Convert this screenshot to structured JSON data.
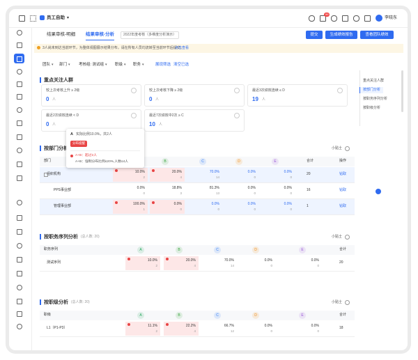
{
  "topbar": {
    "app": "员工自助",
    "badge": "99",
    "user": "李晓东"
  },
  "tabs": [
    "结果审核-明细",
    "结果审核-分析"
  ],
  "cycle": "2022年度考核（多维度分析演示）",
  "buttons": [
    "提交",
    "生成绩效报告",
    "查看团队绩效"
  ],
  "notice": {
    "text": "3人尚未到达当前环节，为整体视图展示结果分布，请在所有人员均流转至当前环节后提交。",
    "link": "点击查看"
  },
  "filters": [
    "团队",
    "部门",
    "考核组: 测试组",
    "职级",
    "职务"
  ],
  "filter_links": [
    "展现筛选",
    "清空已选"
  ],
  "focus": {
    "title": "重点关注人群",
    "cards": [
      {
        "label": "较上次考核上升 ≥ 2级",
        "value": "0",
        "unit": "人"
      },
      {
        "label": "较上次考核下降 ≥ 2级",
        "value": "0",
        "unit": "人"
      },
      {
        "label": "最近3次绩效连续 ≤ D",
        "value": "19",
        "unit": "人"
      },
      {
        "label": "最近2次绩效连续 < D",
        "value": "0",
        "unit": "人"
      },
      {
        "label": "最近7次绩效中2次 ≥ C",
        "value": "10",
        "unit": "人"
      }
    ]
  },
  "tooltip": {
    "grade": "A",
    "summary": "实际比例10.0%，共2人",
    "tag": "分布提醒",
    "warn": "A+B：超过2人",
    "rule": "A+B：强制分布比例≤20%,人数≤4人"
  },
  "nav": [
    "重点关注人群",
    "按部门分析",
    "按职务序列分析",
    "按职级分析"
  ],
  "grade_colors": {
    "A": "#27a85f",
    "B": "#3aa640",
    "C": "#2f7bf6",
    "D": "#f08c1a",
    "E": "#9a5ad8"
  },
  "tables": [
    {
      "title": "按部门分析",
      "tip": "小贴士",
      "columns": [
        "部门",
        "A",
        "B",
        "C",
        "D",
        "E",
        "合计",
        "操作"
      ],
      "rows": [
        {
          "name": "组织机构",
          "tone": "blue",
          "cells": [
            {
              "pct": "10.0%",
              "count": "2",
              "tone": "red"
            },
            {
              "pct": "20.0%",
              "count": "4",
              "tone": "red"
            },
            {
              "pct": "70.0%",
              "count": "14"
            },
            {
              "pct": "0.0%",
              "count": "0"
            },
            {
              "pct": "0.0%",
              "count": "0"
            }
          ],
          "total": "20",
          "action": "钻取"
        },
        {
          "name": "PPS事业部",
          "cells": [
            {
              "pct": "0.0%",
              "count": "0"
            },
            {
              "pct": "18.8%",
              "count": "3"
            },
            {
              "pct": "81.3%",
              "count": "13"
            },
            {
              "pct": "0.0%",
              "count": "0"
            },
            {
              "pct": "0.0%",
              "count": "0"
            }
          ],
          "total": "16",
          "action": "钻取"
        },
        {
          "name": "管理事业部",
          "tone": "blue",
          "cells": [
            {
              "pct": "100.0%",
              "count": "1",
              "tone": "red"
            },
            {
              "pct": "0.0%",
              "count": "0",
              "tone": "red"
            },
            {
              "pct": "0.0%",
              "count": "0"
            },
            {
              "pct": "0.0%",
              "count": "0"
            },
            {
              "pct": "0.0%",
              "count": "0"
            }
          ],
          "total": "1",
          "action": "钻取"
        }
      ]
    },
    {
      "title": "按职务序列分析",
      "note": "(总人数: 20)",
      "tip": "小贴士",
      "columns": [
        "职务序列",
        "A",
        "B",
        "C",
        "D",
        "E",
        "合计"
      ],
      "rows": [
        {
          "name": "测试序列",
          "cells": [
            {
              "pct": "10.0%",
              "count": "2",
              "tone": "red"
            },
            {
              "pct": "20.0%",
              "count": "4",
              "tone": "red"
            },
            {
              "pct": "70.0%",
              "count": "14"
            },
            {
              "pct": "0.0%",
              "count": "0"
            },
            {
              "pct": "0.0%",
              "count": "0"
            }
          ],
          "total": "20"
        }
      ]
    },
    {
      "title": "按职级分析",
      "note": "(总人数: 20)",
      "tip": "小贴士",
      "columns": [
        "职级",
        "A",
        "B",
        "C",
        "D",
        "E",
        "合计"
      ],
      "rows": [
        {
          "name": "L1（P1-P3）",
          "cells": [
            {
              "pct": "11.1%",
              "count": "2",
              "tone": "red"
            },
            {
              "pct": "22.2%",
              "count": "4",
              "tone": "red"
            },
            {
              "pct": "66.7%",
              "count": "12"
            },
            {
              "pct": "0.0%",
              "count": "0"
            },
            {
              "pct": "0.0%",
              "count": "0"
            }
          ],
          "total": "18"
        }
      ]
    }
  ]
}
